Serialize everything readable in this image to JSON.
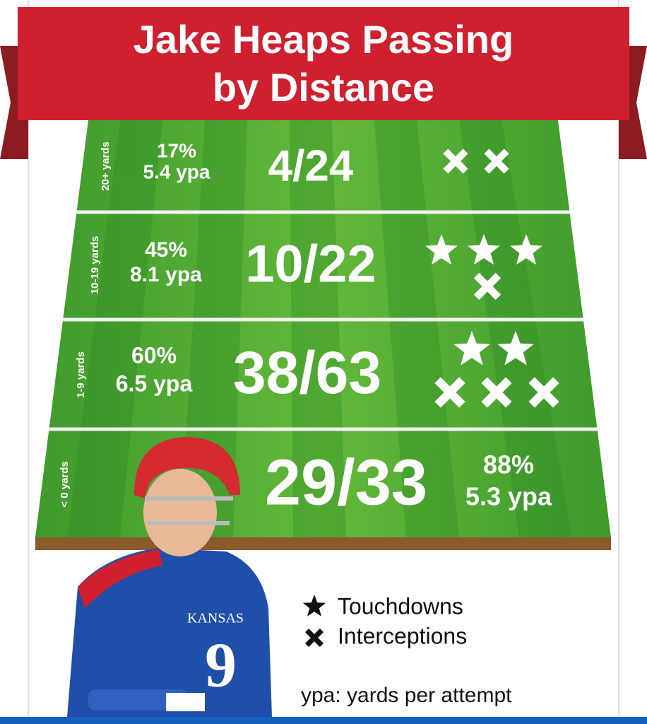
{
  "title": [
    "Jake Heaps Passing",
    "by Distance"
  ],
  "rows": [
    {
      "distance": "20+ yards",
      "completion_pct": "17%",
      "ypa": "5.4 ypa",
      "completions": "4/24",
      "touchdowns": 0,
      "interceptions": 2
    },
    {
      "distance": "10-19 yards",
      "completion_pct": "45%",
      "ypa": "8.1 ypa",
      "completions": "10/22",
      "touchdowns": 3,
      "interceptions": 1
    },
    {
      "distance": "1-9 yards",
      "completion_pct": "60%",
      "ypa": "6.5 ypa",
      "completions": "38/63",
      "touchdowns": 2,
      "interceptions": 3
    },
    {
      "distance": "< 0 yards",
      "completion_pct": "88%",
      "ypa": "5.3 ypa",
      "completions": "29/33",
      "touchdowns": 0,
      "interceptions": 0
    }
  ],
  "legend": [
    "Touchdowns",
    "Interceptions"
  ],
  "note": "ypa: yards per attempt"
}
